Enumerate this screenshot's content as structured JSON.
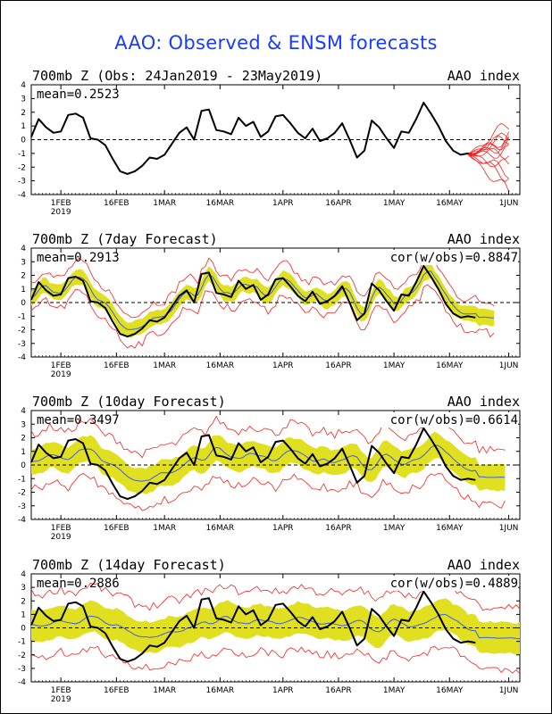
{
  "page": {
    "title": "AAO: Observed & ENSM forecasts"
  },
  "colors": {
    "obs": "#000000",
    "ens_mean": "#4060d8",
    "band": "#e0e020",
    "member": "#ff2020",
    "title": "#1a3cff"
  },
  "axes": {
    "y_ticks": [
      "4",
      "3",
      "2",
      "1",
      "0",
      "-1",
      "-2",
      "-3",
      "-4"
    ],
    "x_ticks": [
      "1FEB",
      "16FEB",
      "1MAR",
      "16MAR",
      "1APR",
      "16APR",
      "1MAY",
      "16MAY",
      "1JUN"
    ],
    "x_year": "2019",
    "ylim": [
      -4,
      4
    ]
  },
  "chart_data": [
    {
      "type": "line",
      "title": "700mb Z (Obs: 24Jan2019 - 23May2019)",
      "right_label": "AAO index",
      "mean_label": "mean=0.2523",
      "cor_label": "",
      "ylim": [
        -4,
        4
      ],
      "x_unit": "day index from 24Jan2019 (0 = 24JAN, 1JUN = 128)",
      "series": [
        {
          "name": "",
          "role": "obs",
          "x": [
            0,
            2,
            4,
            6,
            8,
            10,
            12,
            14,
            16,
            18,
            20,
            22,
            24,
            26,
            28,
            30,
            32,
            34,
            36,
            38,
            40,
            42,
            44,
            46,
            48,
            50,
            52,
            54,
            56,
            58,
            60,
            62,
            64,
            66,
            68,
            70,
            72,
            74,
            76,
            78,
            80,
            82,
            84,
            86,
            88,
            90,
            92,
            94,
            96,
            98,
            100,
            102,
            104,
            106,
            108,
            110,
            112,
            114,
            116,
            118,
            120
          ],
          "y": [
            0.2,
            1.5,
            0.9,
            0.5,
            0.6,
            1.8,
            1.9,
            1.6,
            0.1,
            0,
            -0.4,
            -1.4,
            -2.3,
            -2.5,
            -2.3,
            -1.9,
            -1.3,
            -1.4,
            -1.1,
            -0.3,
            0.5,
            0.9,
            0,
            2.1,
            2.2,
            0.7,
            0.6,
            0.4,
            1.6,
            1.0,
            1.3,
            0.2,
            0.6,
            1.7,
            1.8,
            1.2,
            0.5,
            0.1,
            0.8,
            -0.1,
            0.1,
            0.5,
            1.2,
            0,
            -1.3,
            -0.8,
            1.4,
            0.9,
            0.1,
            -0.6,
            0.6,
            0.5,
            1.5,
            2.7,
            1.9,
            1.0,
            -0.1,
            -0.8,
            -1.1,
            -1.0,
            -1.1
          ]
        }
      ],
      "members": {
        "x_start": 118,
        "x_end": 129,
        "count": 12
      }
    },
    {
      "type": "line",
      "title": "700mb Z (7day Forecast)",
      "right_label": "AAO index",
      "mean_label": "mean=0.2913",
      "cor_label": "cor(w/obs)=0.8847",
      "ylim": [
        -4,
        4
      ],
      "series": [
        {
          "name": "",
          "role": "obs"
        },
        {
          "name": "",
          "role": "ens_mean",
          "x_end": 125
        }
      ],
      "band_halfwidth": 0.55,
      "member_halfwidth": 1.0
    },
    {
      "type": "line",
      "title": "700mb Z (10day Forecast)",
      "right_label": "AAO index",
      "mean_label": "mean=0.3497",
      "cor_label": "cor(w/obs)=0.6614",
      "ylim": [
        -4,
        4
      ],
      "series": [
        {
          "name": "",
          "role": "obs"
        },
        {
          "name": "",
          "role": "ens_mean",
          "x_end": 128
        }
      ],
      "band_halfwidth": 0.95,
      "member_halfwidth": 1.9
    },
    {
      "type": "line",
      "title": "700mb Z (14day Forecast)",
      "right_label": "AAO index",
      "mean_label": "mean=0.2886",
      "cor_label": "cor(w/obs)=0.4889",
      "ylim": [
        -4,
        4
      ],
      "series": [
        {
          "name": "",
          "role": "obs"
        },
        {
          "name": "",
          "role": "ens_mean",
          "x_end": 132
        }
      ],
      "band_halfwidth": 1.15,
      "member_halfwidth": 2.2
    }
  ]
}
